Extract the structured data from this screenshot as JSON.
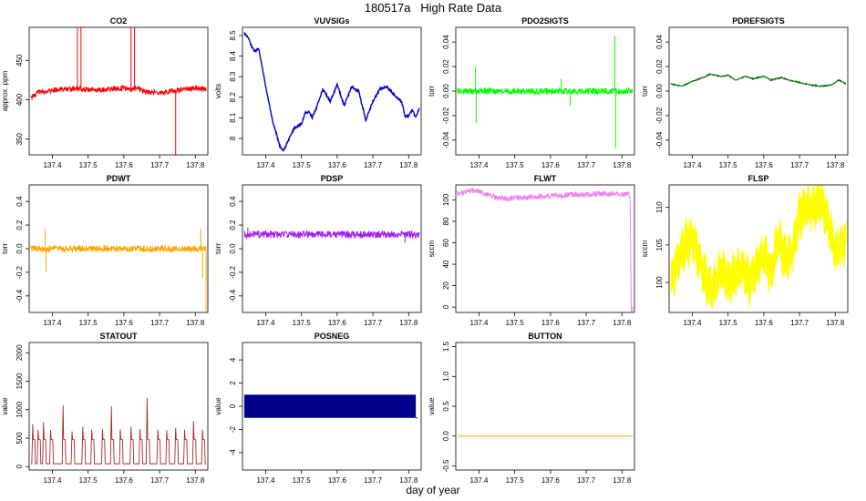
{
  "header": {
    "title": "180517a   High Rate Data",
    "xlabel": "day of year"
  },
  "chart_data": [
    {
      "type": "line",
      "title": "CO2",
      "ylabel": "approx. ppm",
      "color": "#ff0000",
      "xlim": [
        137.335,
        137.835
      ],
      "ylim": [
        330,
        492
      ],
      "yticks": [
        350,
        400,
        450
      ],
      "xticks": [
        "137.4",
        "137.5",
        "137.6",
        "137.7",
        "137.8"
      ],
      "series": [
        {
          "x": [
            137.34,
            137.36,
            137.38,
            137.4,
            137.42,
            137.44,
            137.46,
            137.48,
            137.5,
            137.52,
            137.54,
            137.56,
            137.58,
            137.6,
            137.62,
            137.64,
            137.66,
            137.68,
            137.7,
            137.72,
            137.74,
            137.76,
            137.78,
            137.8,
            137.82,
            137.83
          ],
          "y": [
            402,
            410,
            411,
            412,
            413,
            413,
            414,
            414,
            413,
            413,
            412,
            414,
            414,
            415,
            412,
            416,
            410,
            409,
            409,
            410,
            412,
            413,
            414,
            415,
            414,
            414
          ]
        }
      ],
      "spikes": [
        {
          "x": 137.47,
          "y": 492
        },
        {
          "x": 137.48,
          "y": 492
        },
        {
          "x": 137.62,
          "y": 492
        },
        {
          "x": 137.63,
          "y": 492
        },
        {
          "x": 137.745,
          "y": 330
        }
      ]
    },
    {
      "type": "line",
      "title": "VUVSIGs",
      "ylabel": "volts",
      "color": "#0000cd",
      "xlim": [
        137.335,
        137.835
      ],
      "ylim": [
        7.92,
        8.54
      ],
      "yticks": [
        8.0,
        8.1,
        8.2,
        8.3,
        8.4,
        8.5
      ],
      "xticks": [
        "137.4",
        "137.5",
        "137.6",
        "137.7",
        "137.8"
      ],
      "series": [
        {
          "x": [
            137.34,
            137.35,
            137.36,
            137.37,
            137.38,
            137.39,
            137.4,
            137.42,
            137.44,
            137.45,
            137.46,
            137.48,
            137.5,
            137.51,
            137.52,
            137.53,
            137.54,
            137.56,
            137.58,
            137.6,
            137.62,
            137.64,
            137.66,
            137.68,
            137.7,
            137.72,
            137.74,
            137.76,
            137.78,
            137.79,
            137.8,
            137.81,
            137.82,
            137.83
          ],
          "y": [
            8.51,
            8.49,
            8.45,
            8.42,
            8.44,
            8.35,
            8.25,
            8.08,
            7.96,
            7.94,
            7.98,
            8.05,
            8.07,
            8.12,
            8.13,
            8.1,
            8.14,
            8.24,
            8.18,
            8.26,
            8.16,
            8.25,
            8.23,
            8.09,
            8.18,
            8.24,
            8.25,
            8.21,
            8.18,
            8.11,
            8.11,
            8.14,
            8.1,
            8.15
          ]
        }
      ]
    },
    {
      "type": "line",
      "title": "PDO2SIGTS",
      "ylabel": "torr",
      "color": "#00ff00",
      "xlim": [
        137.335,
        137.835
      ],
      "ylim": [
        -0.052,
        0.052
      ],
      "yticks": [
        -0.04,
        -0.02,
        0.0,
        0.02,
        0.04
      ],
      "xticks": [
        "137.4",
        "137.5",
        "137.6",
        "137.7",
        "137.8"
      ],
      "series": [
        {
          "x": [
            137.34,
            137.83
          ],
          "y": [
            0.0,
            0.0
          ]
        }
      ],
      "spikes": [
        {
          "x": 137.39,
          "y": 0.02
        },
        {
          "x": 137.392,
          "y": -0.026
        },
        {
          "x": 137.63,
          "y": 0.01
        },
        {
          "x": 137.655,
          "y": -0.012
        },
        {
          "x": 137.78,
          "y": 0.045
        },
        {
          "x": 137.782,
          "y": -0.047
        }
      ]
    },
    {
      "type": "line",
      "title": "PDREFSIGTS",
      "ylabel": "torr",
      "color": "#006400",
      "xlim": [
        137.335,
        137.835
      ],
      "ylim": [
        -0.052,
        0.052
      ],
      "yticks": [
        -0.04,
        -0.02,
        0.0,
        0.02,
        0.04
      ],
      "xticks": [
        "137.4",
        "137.5",
        "137.6",
        "137.7",
        "137.8"
      ],
      "series": [
        {
          "x": [
            137.34,
            137.37,
            137.4,
            137.43,
            137.45,
            137.48,
            137.5,
            137.52,
            137.55,
            137.57,
            137.6,
            137.62,
            137.65,
            137.67,
            137.7,
            137.73,
            137.76,
            137.79,
            137.81,
            137.83
          ],
          "y": [
            0.006,
            0.004,
            0.008,
            0.011,
            0.014,
            0.012,
            0.013,
            0.009,
            0.012,
            0.01,
            0.012,
            0.009,
            0.011,
            0.009,
            0.007,
            0.005,
            0.004,
            0.005,
            0.009,
            0.006
          ]
        }
      ]
    },
    {
      "type": "line",
      "title": "PDWT",
      "ylabel": "torr",
      "color": "#ffa500",
      "xlim": [
        137.335,
        137.835
      ],
      "ylim": [
        -0.54,
        0.54
      ],
      "yticks": [
        -0.4,
        -0.2,
        0.0,
        0.2,
        0.4
      ],
      "xticks": [
        "137.4",
        "137.5",
        "137.6",
        "137.7",
        "137.8"
      ],
      "series": [
        {
          "x": [
            137.34,
            137.83
          ],
          "y": [
            0.0,
            0.0
          ]
        }
      ],
      "spikes": [
        {
          "x": 137.38,
          "y": 0.17
        },
        {
          "x": 137.382,
          "y": -0.2
        },
        {
          "x": 137.815,
          "y": 0.17
        },
        {
          "x": 137.82,
          "y": -0.25
        },
        {
          "x": 137.83,
          "y": -0.54
        }
      ]
    },
    {
      "type": "line",
      "title": "PDSP",
      "ylabel": "torr",
      "color": "#a020f0",
      "xlim": [
        137.335,
        137.835
      ],
      "ylim": [
        -0.54,
        0.54
      ],
      "yticks": [
        -0.4,
        -0.2,
        0.0,
        0.2,
        0.4
      ],
      "xticks": [
        "137.4",
        "137.5",
        "137.6",
        "137.7",
        "137.8"
      ],
      "series": [
        {
          "x": [
            137.34,
            137.83
          ],
          "y": [
            0.12,
            0.12
          ]
        }
      ],
      "spikes": [
        {
          "x": 137.35,
          "y": 0.18
        },
        {
          "x": 137.79,
          "y": 0.05
        }
      ]
    },
    {
      "type": "line",
      "title": "FLWT",
      "ylabel": "sccm",
      "color": "#ee82ee",
      "xlim": [
        137.335,
        137.835
      ],
      "ylim": [
        -5,
        114
      ],
      "yticks": [
        0,
        20,
        40,
        60,
        80,
        100
      ],
      "xticks": [
        "137.4",
        "137.5",
        "137.6",
        "137.7",
        "137.8"
      ],
      "series": [
        {
          "x": [
            137.34,
            137.36,
            137.38,
            137.4,
            137.42,
            137.45,
            137.48,
            137.5,
            137.53,
            137.56,
            137.6,
            137.63,
            137.66,
            137.7,
            137.74,
            137.78,
            137.8,
            137.82,
            137.823,
            137.826,
            137.83
          ],
          "y": [
            106,
            107,
            109,
            108,
            105,
            102,
            101,
            102,
            102,
            103,
            104,
            104,
            105,
            105,
            106,
            106,
            105,
            106,
            100,
            -2,
            -2
          ]
        }
      ]
    },
    {
      "type": "line",
      "title": "FLSP",
      "ylabel": "sccm",
      "color": "#ffff00",
      "xlim": [
        137.335,
        137.835
      ],
      "ylim": [
        96,
        113
      ],
      "yticks": [
        100,
        105,
        110
      ],
      "xticks": [
        "137.4",
        "137.5",
        "137.6",
        "137.7",
        "137.8"
      ],
      "series": [
        {
          "x": [
            137.34,
            137.36,
            137.38,
            137.4,
            137.42,
            137.44,
            137.46,
            137.48,
            137.5,
            137.52,
            137.54,
            137.56,
            137.58,
            137.6,
            137.62,
            137.64,
            137.66,
            137.68,
            137.7,
            137.72,
            137.74,
            137.76,
            137.78,
            137.8,
            137.82,
            137.83
          ],
          "y": [
            100,
            103,
            105,
            106,
            103,
            100,
            99,
            102,
            100,
            101,
            102,
            100,
            102,
            104,
            101,
            106,
            103,
            104,
            109,
            110,
            110,
            111,
            108,
            104,
            105,
            106
          ]
        }
      ],
      "band": 4
    },
    {
      "type": "line",
      "title": "STATOUT",
      "ylabel": "value",
      "color": "#a52a2a",
      "xlim": [
        137.335,
        137.835
      ],
      "ylim": [
        -60,
        2180
      ],
      "yticks": [
        0,
        500,
        1000,
        1500,
        2000
      ],
      "xticks": [
        "137.4",
        "137.5",
        "137.6",
        "137.7",
        "137.8"
      ],
      "series": [
        {
          "x": [
            137.34,
            137.83
          ],
          "y": [
            50,
            50
          ]
        }
      ],
      "pulses": [
        {
          "x": 137.345,
          "y": 750
        },
        {
          "x": 137.36,
          "y": 650
        },
        {
          "x": 137.375,
          "y": 780
        },
        {
          "x": 137.395,
          "y": 640
        },
        {
          "x": 137.43,
          "y": 1080
        },
        {
          "x": 137.455,
          "y": 620
        },
        {
          "x": 137.485,
          "y": 700
        },
        {
          "x": 137.51,
          "y": 650
        },
        {
          "x": 137.54,
          "y": 660
        },
        {
          "x": 137.565,
          "y": 1060
        },
        {
          "x": 137.59,
          "y": 650
        },
        {
          "x": 137.62,
          "y": 700
        },
        {
          "x": 137.645,
          "y": 660
        },
        {
          "x": 137.665,
          "y": 1200
        },
        {
          "x": 137.695,
          "y": 650
        },
        {
          "x": 137.72,
          "y": 640
        },
        {
          "x": 137.745,
          "y": 680
        },
        {
          "x": 137.77,
          "y": 650
        },
        {
          "x": 137.795,
          "y": 800
        },
        {
          "x": 137.82,
          "y": 650
        }
      ]
    },
    {
      "type": "area",
      "title": "POSNEG",
      "ylabel": "value",
      "color": "#00008b",
      "xlim": [
        137.335,
        137.835
      ],
      "ylim": [
        -5.5,
        5.5
      ],
      "yticks": [
        -4,
        -2,
        0,
        2,
        4
      ],
      "xticks": [
        "137.4",
        "137.5",
        "137.6",
        "137.7",
        "137.8"
      ],
      "series": [
        {
          "x": [
            137.34,
            137.82
          ],
          "y_low": [
            -1,
            -1
          ],
          "y_high": [
            1,
            1
          ]
        }
      ]
    },
    {
      "type": "line",
      "title": "BUTTON",
      "ylabel": "value",
      "color": "#ffa500",
      "xlim": [
        137.335,
        137.835
      ],
      "ylim": [
        -0.57,
        1.57
      ],
      "yticks": [
        -0.5,
        0.0,
        0.5,
        1.0,
        1.5
      ],
      "xticks": [
        "137.4",
        "137.5",
        "137.6",
        "137.7",
        "137.8"
      ],
      "series": [
        {
          "x": [
            137.34,
            137.83
          ],
          "y": [
            0,
            0
          ]
        }
      ]
    }
  ]
}
